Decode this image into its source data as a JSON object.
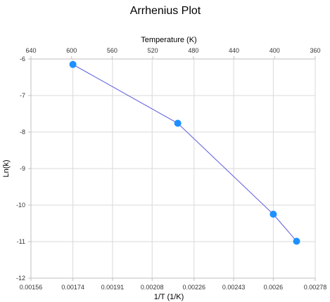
{
  "chart_data": {
    "type": "scatter",
    "title": "Arrhenius Plot",
    "xlabel": "1/T (1/K)",
    "ylabel": "Ln(k)",
    "secondary_xlabel": "Temperature (K)",
    "xlim": [
      0.00156,
      0.00278
    ],
    "ylim": [
      -12,
      -6
    ],
    "secondary_xlim": [
      640,
      360
    ],
    "x_ticks": [
      0.00156,
      0.00174,
      0.00191,
      0.00208,
      0.00226,
      0.00243,
      0.0026,
      0.00278
    ],
    "x_tick_labels": [
      "0.00156",
      "0.00174",
      "0.00191",
      "0.00208",
      "0.00226",
      "0.00243",
      "0.0026",
      "0.00278"
    ],
    "y_ticks": [
      -12,
      -11,
      -10,
      -9,
      -8,
      -7,
      -6
    ],
    "y_tick_labels": [
      "-12",
      "-11",
      "-10",
      "-9",
      "-8",
      "-7",
      "-6"
    ],
    "secondary_x_ticks": [
      640,
      600,
      560,
      520,
      480,
      440,
      400,
      360
    ],
    "secondary_x_tick_labels": [
      "640",
      "600",
      "560",
      "520",
      "480",
      "440",
      "400",
      "360"
    ],
    "grid": true,
    "series": [
      {
        "x": [
          0.00174,
          0.00219,
          0.0026,
          0.0027
        ],
        "y": [
          -6.15,
          -7.76,
          -10.25,
          -10.99
        ],
        "color": "#1e90ff",
        "line_color": "#5b5bdc",
        "markers": true
      }
    ]
  }
}
